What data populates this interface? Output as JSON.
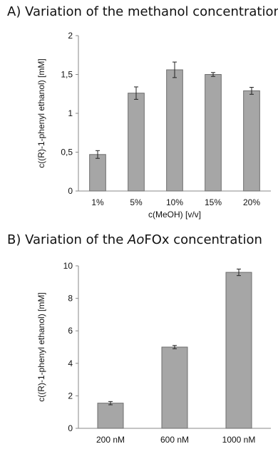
{
  "panel_a": {
    "title": "A) Variation of the methanol concentration"
  },
  "panel_b": {
    "title_prefix": "B) Variation of the ",
    "title_italic": "Ao",
    "title_suffix": "FOx concentration"
  },
  "chart_data": [
    {
      "type": "bar",
      "title": "A) Variation of the methanol concentration",
      "categories": [
        "1%",
        "5%",
        "10%",
        "15%",
        "20%"
      ],
      "values": [
        0.47,
        1.26,
        1.56,
        1.5,
        1.29
      ],
      "errors": [
        0.05,
        0.08,
        0.1,
        0.025,
        0.045
      ],
      "xlabel": "c(MeOH) [v/v]",
      "ylabel": "c((R)-1-phenyl ethanol) [mM]",
      "ylim": [
        0,
        2
      ],
      "yticks": [
        0,
        0.5,
        1,
        1.5,
        2
      ],
      "ytick_labels": [
        "0",
        "0,5",
        "1",
        "1,5",
        "2"
      ],
      "grid": false,
      "bar_color": "#a6a6a6"
    },
    {
      "type": "bar",
      "title": "B) Variation of the AoFOx concentration",
      "categories": [
        "200 nM",
        "600 nM",
        "1000 nM"
      ],
      "values": [
        1.55,
        5.0,
        9.6
      ],
      "errors": [
        0.1,
        0.1,
        0.2
      ],
      "xlabel": "",
      "ylabel": "c((R)-1-phenyl ethanol) [mM]",
      "ylim": [
        0,
        10
      ],
      "yticks": [
        0,
        2,
        4,
        6,
        8,
        10
      ],
      "ytick_labels": [
        "0",
        "2",
        "4",
        "6",
        "8",
        "10"
      ],
      "grid": false,
      "bar_color": "#a6a6a6"
    }
  ]
}
